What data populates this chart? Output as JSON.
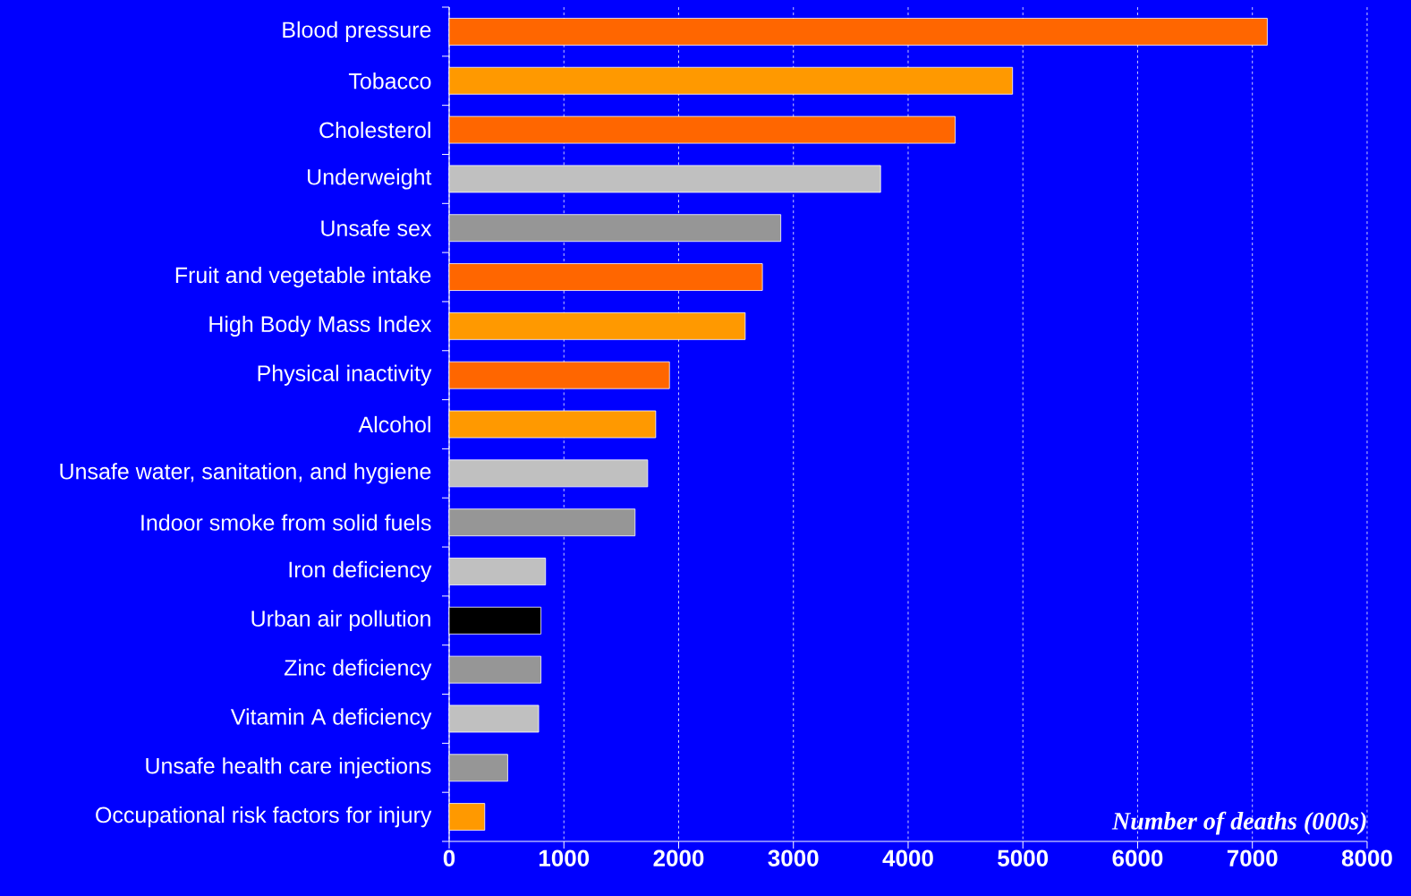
{
  "chart_data": {
    "type": "bar",
    "orientation": "horizontal",
    "xlabel": "Number of deaths (000s)",
    "categories": [
      "Blood pressure",
      "Tobacco",
      "Cholesterol",
      "Underweight",
      "Unsafe sex",
      "Fruit and vegetable intake",
      "High Body Mass Index",
      "Physical inactivity",
      "Alcohol",
      "Unsafe water, sanitation, and hygiene",
      "Indoor smoke from solid fuels",
      "Iron deficiency",
      "Urban air pollution",
      "Zinc deficiency",
      "Vitamin A deficiency",
      "Unsafe health care injections",
      "Occupational risk factors for injury"
    ],
    "values": [
      7130,
      4910,
      4410,
      3760,
      2890,
      2730,
      2580,
      1920,
      1800,
      1730,
      1620,
      840,
      800,
      800,
      780,
      510,
      310
    ],
    "colors": [
      "#ff6600",
      "#ff9900",
      "#ff6600",
      "#c0c0c0",
      "#969696",
      "#ff6600",
      "#ff9900",
      "#ff6600",
      "#ff9900",
      "#c0c0c0",
      "#969696",
      "#c0c0c0",
      "#000000",
      "#969696",
      "#c0c0c0",
      "#969696",
      "#ff9900"
    ],
    "xlim": [
      0,
      8000
    ],
    "xticks": [
      0,
      1000,
      2000,
      3000,
      4000,
      5000,
      6000,
      7000,
      8000
    ],
    "grid": "x"
  }
}
